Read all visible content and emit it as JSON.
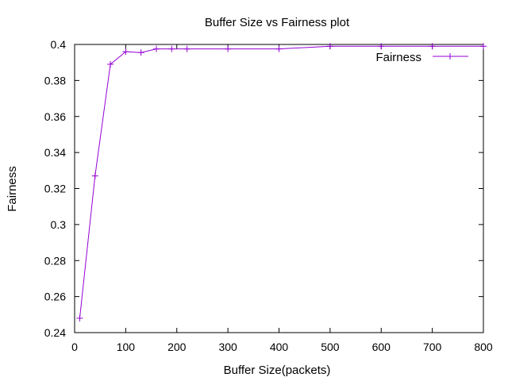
{
  "chart_data": {
    "type": "line",
    "title": "Buffer Size vs Fairness plot",
    "xlabel": "Buffer Size(packets)",
    "ylabel": "Fairness",
    "xlim": [
      0,
      800
    ],
    "ylim": [
      0.24,
      0.4
    ],
    "xticks": [
      0,
      100,
      200,
      300,
      400,
      500,
      600,
      700,
      800
    ],
    "xtick_labels": [
      "0",
      "100",
      "200",
      "300",
      "400",
      "500",
      "600",
      "700",
      "800"
    ],
    "yticks": [
      0.24,
      0.26,
      0.28,
      0.3,
      0.32,
      0.34,
      0.36,
      0.38,
      0.4
    ],
    "ytick_labels": [
      "0.24",
      "0.26",
      "0.28",
      "0.3",
      "0.32",
      "0.34",
      "0.36",
      "0.38",
      "0.4"
    ],
    "grid": false,
    "legend_position": "top-right",
    "marker": "plus",
    "series": [
      {
        "name": "Fairness",
        "color": "#9400d3",
        "x": [
          10,
          40,
          70,
          100,
          130,
          160,
          190,
          220,
          300,
          400,
          500,
          600,
          700,
          800
        ],
        "y": [
          0.248,
          0.327,
          0.389,
          0.396,
          0.3955,
          0.3975,
          0.3975,
          0.3975,
          0.3975,
          0.3975,
          0.399,
          0.399,
          0.399,
          0.399
        ]
      }
    ]
  }
}
